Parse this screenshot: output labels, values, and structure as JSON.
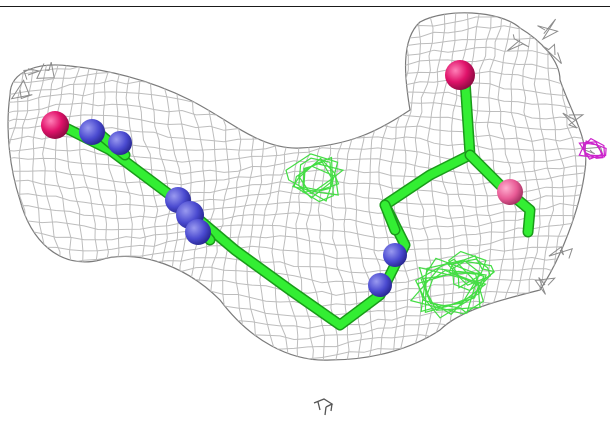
{
  "scene": {
    "mesh_color": "#8c8c8c",
    "mesh_density_color": "#bdbdbd",
    "bond_color": "#33ee33",
    "atom_colors": {
      "nitrogen": "#4a4ad0",
      "oxygen": "#e0126a",
      "carbon": "#33ee33"
    },
    "difference_map_positive": "#44dd44",
    "difference_map_negative": "#cc22cc",
    "stray_mesh_color": "#555555"
  }
}
